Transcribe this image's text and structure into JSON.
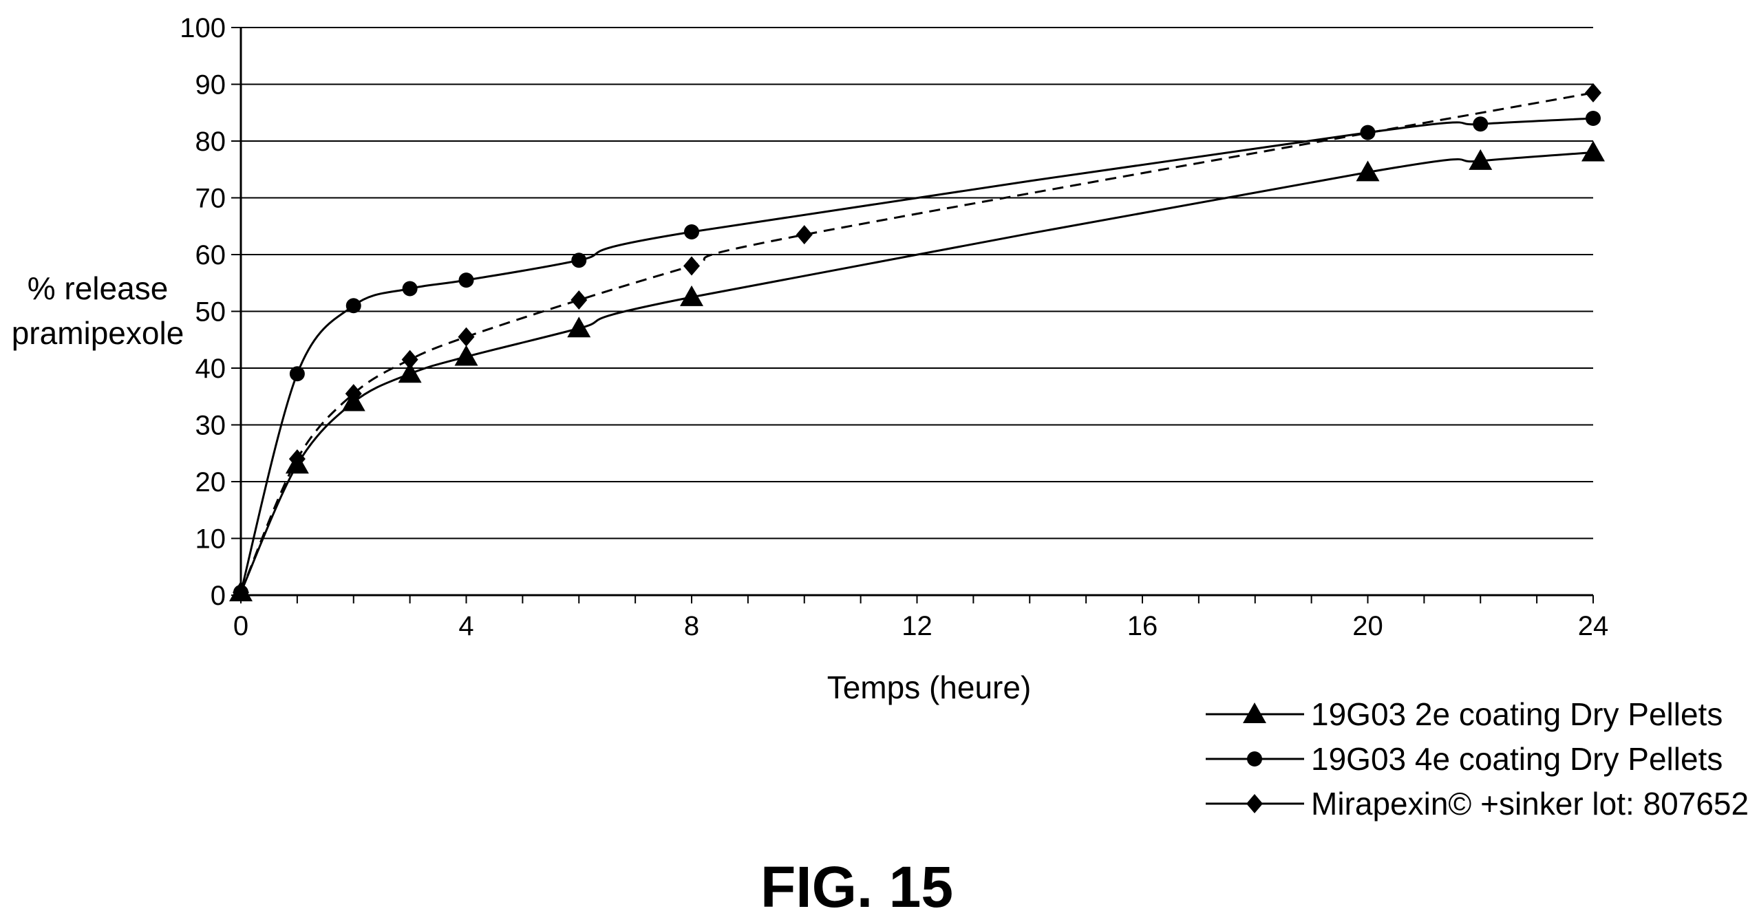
{
  "chart_data": {
    "type": "line",
    "title": "",
    "xlabel": "Temps (heure)",
    "ylabel": [
      "% release",
      "pramipexole"
    ],
    "xlim": [
      0,
      24
    ],
    "ylim": [
      0,
      100
    ],
    "xticks": [
      0,
      4,
      8,
      12,
      16,
      20,
      24
    ],
    "xtick_labels": [
      "0",
      "4",
      "8",
      "12",
      "16",
      "20",
      "24"
    ],
    "yticks": [
      0,
      10,
      20,
      30,
      40,
      50,
      60,
      70,
      80,
      90,
      100
    ],
    "ytick_labels": [
      "0",
      "10",
      "20",
      "30",
      "40",
      "50",
      "60",
      "70",
      "80",
      "90",
      "100"
    ],
    "grid": "horizontal",
    "legend_position": "bottom-right",
    "series": [
      {
        "name": "19G03 2e coating Dry Pellets",
        "marker": "triangle",
        "line_style": "solid",
        "x": [
          0,
          1,
          2,
          3,
          4,
          6,
          8,
          20,
          22,
          24
        ],
        "y": [
          0.5,
          23,
          34,
          39,
          42,
          47,
          52.5,
          74.5,
          76.5,
          78
        ]
      },
      {
        "name": "19G03 4e coating Dry Pellets",
        "marker": "circle",
        "line_style": "solid",
        "x": [
          0,
          1,
          2,
          3,
          4,
          6,
          8,
          20,
          22,
          24
        ],
        "y": [
          0.5,
          39,
          51,
          54,
          55.5,
          59,
          64,
          81.5,
          83,
          84
        ]
      },
      {
        "name": "Mirapexin© +sinker lot: 807652",
        "marker": "diamond",
        "line_style": "dashed",
        "x": [
          0,
          1,
          2,
          3,
          4,
          6,
          8,
          10,
          24
        ],
        "y": [
          0.5,
          24,
          35.5,
          41.5,
          45.5,
          52,
          58,
          63.5,
          88.5
        ]
      }
    ],
    "figure_label": "FIG. 15"
  }
}
